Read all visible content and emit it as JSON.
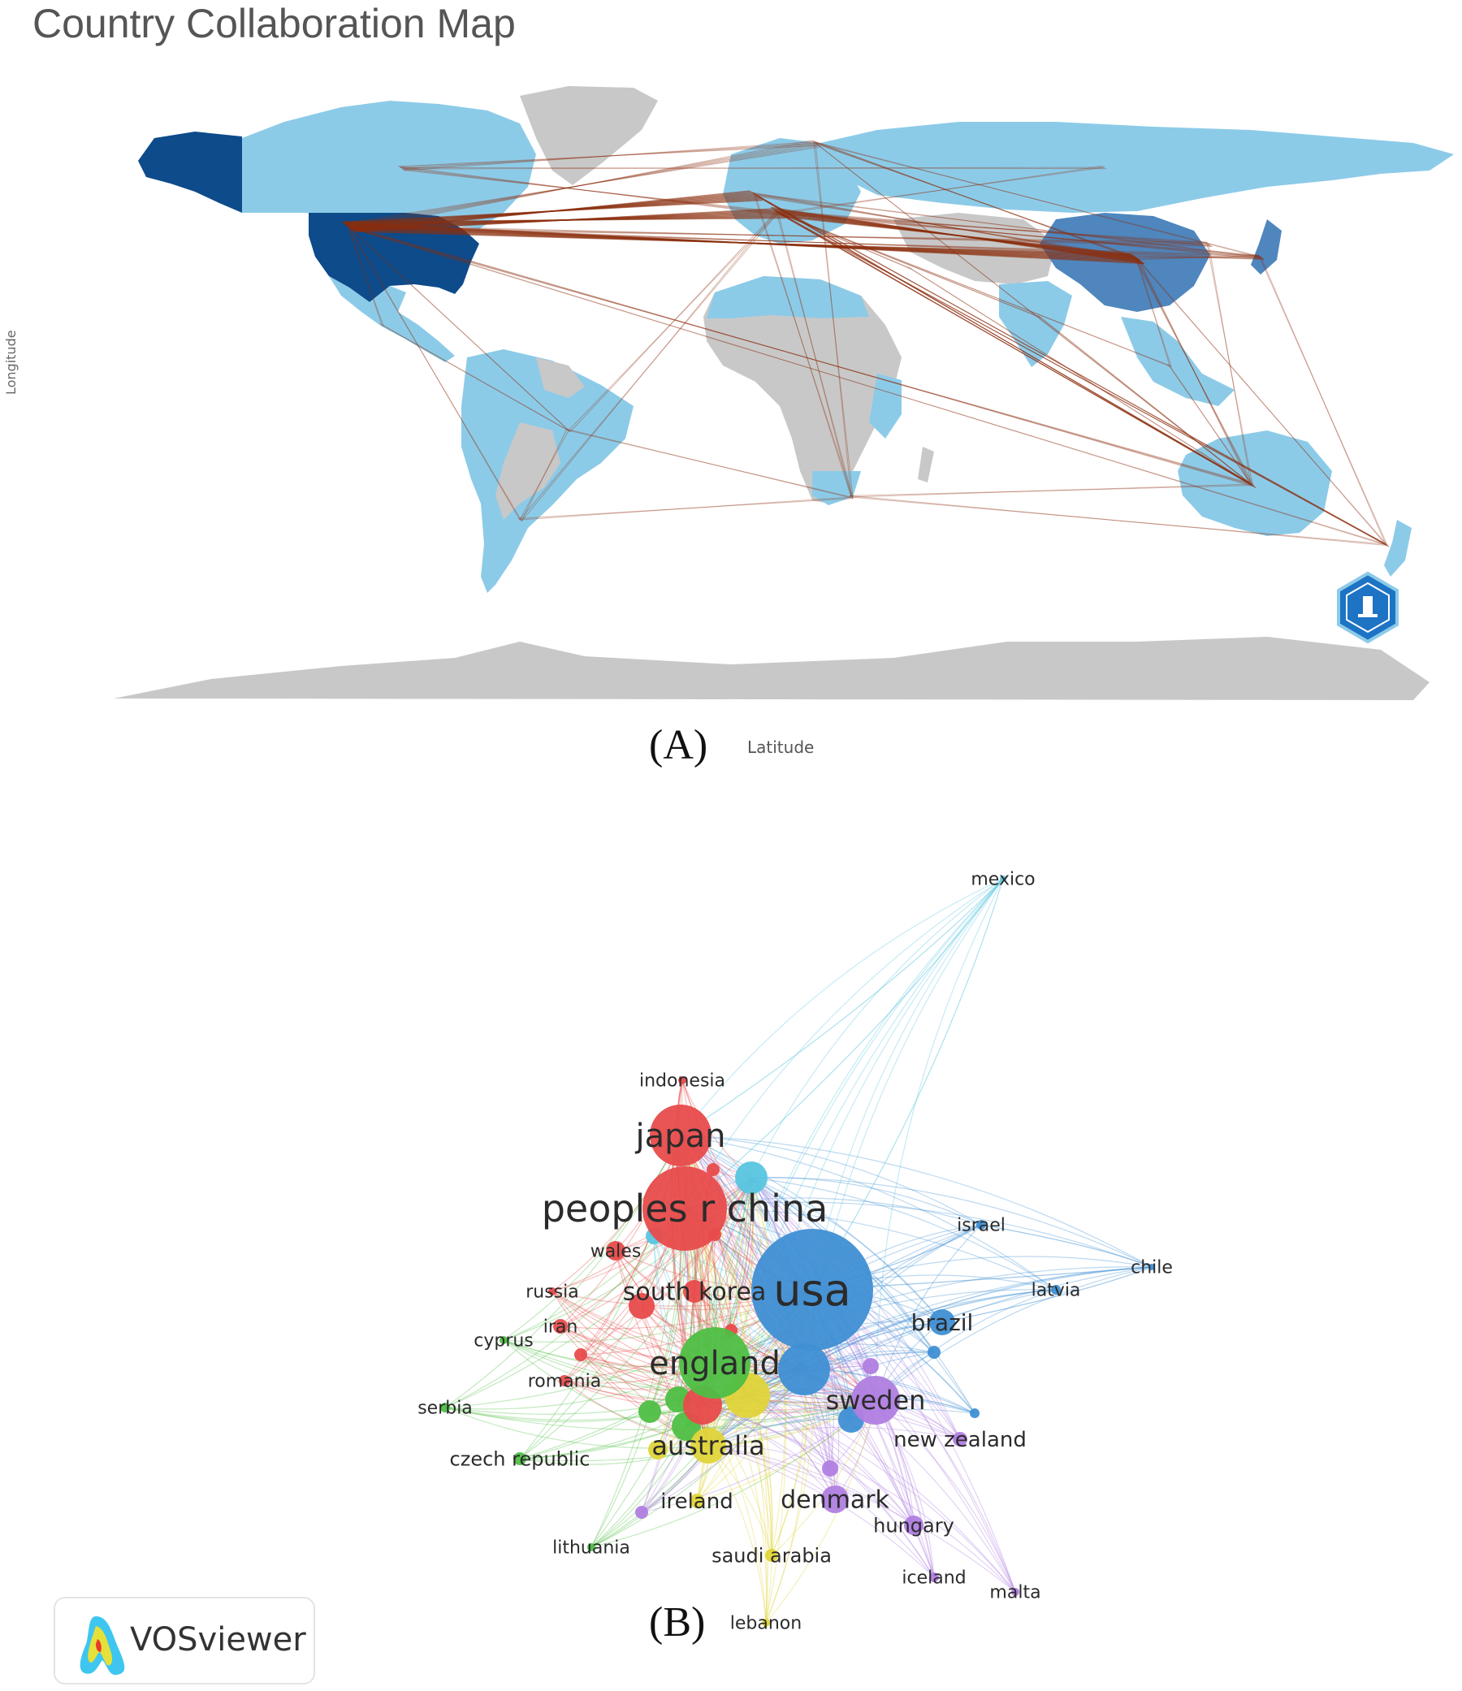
{
  "figure_a": {
    "title": "Country Collaboration Map",
    "y_axis_label": "Longitude",
    "x_axis_label": "Latitude",
    "caption": "(A)",
    "colors": {
      "ocean": "#ffffff",
      "no_data": "#c8c8c8",
      "low": "#8ccbe8",
      "mid": "#4f86bd",
      "high": "#0d4b8a",
      "link": "#8b2e0e"
    },
    "logo_icon": "bibliometrix-hexagon-icon"
  },
  "figure_b": {
    "caption": "(B)",
    "tool_badge": "VOSviewer",
    "tool_icon": "vosviewer-logo-icon",
    "cluster_colors": {
      "red": "#e84b4b",
      "green": "#4fbf45",
      "blue": "#3f8fd4",
      "yellow": "#e0d43a",
      "purple": "#b07ee0",
      "cyan": "#59c5e0"
    },
    "countries": [
      {
        "label": "mexico",
        "cluster": "cyan"
      },
      {
        "label": "indonesia",
        "cluster": "red"
      },
      {
        "label": "japan",
        "cluster": "red"
      },
      {
        "label": "peoples r china",
        "cluster": "red"
      },
      {
        "label": "israel",
        "cluster": "blue"
      },
      {
        "label": "chile",
        "cluster": "blue"
      },
      {
        "label": "wales",
        "cluster": "red"
      },
      {
        "label": "usa",
        "cluster": "blue"
      },
      {
        "label": "russia",
        "cluster": "red"
      },
      {
        "label": "south korea",
        "cluster": "red"
      },
      {
        "label": "latvia",
        "cluster": "blue"
      },
      {
        "label": "iran",
        "cluster": "red"
      },
      {
        "label": "brazil",
        "cluster": "blue"
      },
      {
        "label": "cyprus",
        "cluster": "green"
      },
      {
        "label": "england",
        "cluster": "green"
      },
      {
        "label": "romania",
        "cluster": "red"
      },
      {
        "label": "serbia",
        "cluster": "green"
      },
      {
        "label": "sweden",
        "cluster": "purple"
      },
      {
        "label": "new zealand",
        "cluster": "purple"
      },
      {
        "label": "czech republic",
        "cluster": "green"
      },
      {
        "label": "australia",
        "cluster": "yellow"
      },
      {
        "label": "ireland",
        "cluster": "yellow"
      },
      {
        "label": "denmark",
        "cluster": "purple"
      },
      {
        "label": "hungary",
        "cluster": "purple"
      },
      {
        "label": "lithuania",
        "cluster": "green"
      },
      {
        "label": "saudi arabia",
        "cluster": "yellow"
      },
      {
        "label": "iceland",
        "cluster": "purple"
      },
      {
        "label": "malta",
        "cluster": "purple"
      },
      {
        "label": "lebanon",
        "cluster": "yellow"
      }
    ]
  }
}
